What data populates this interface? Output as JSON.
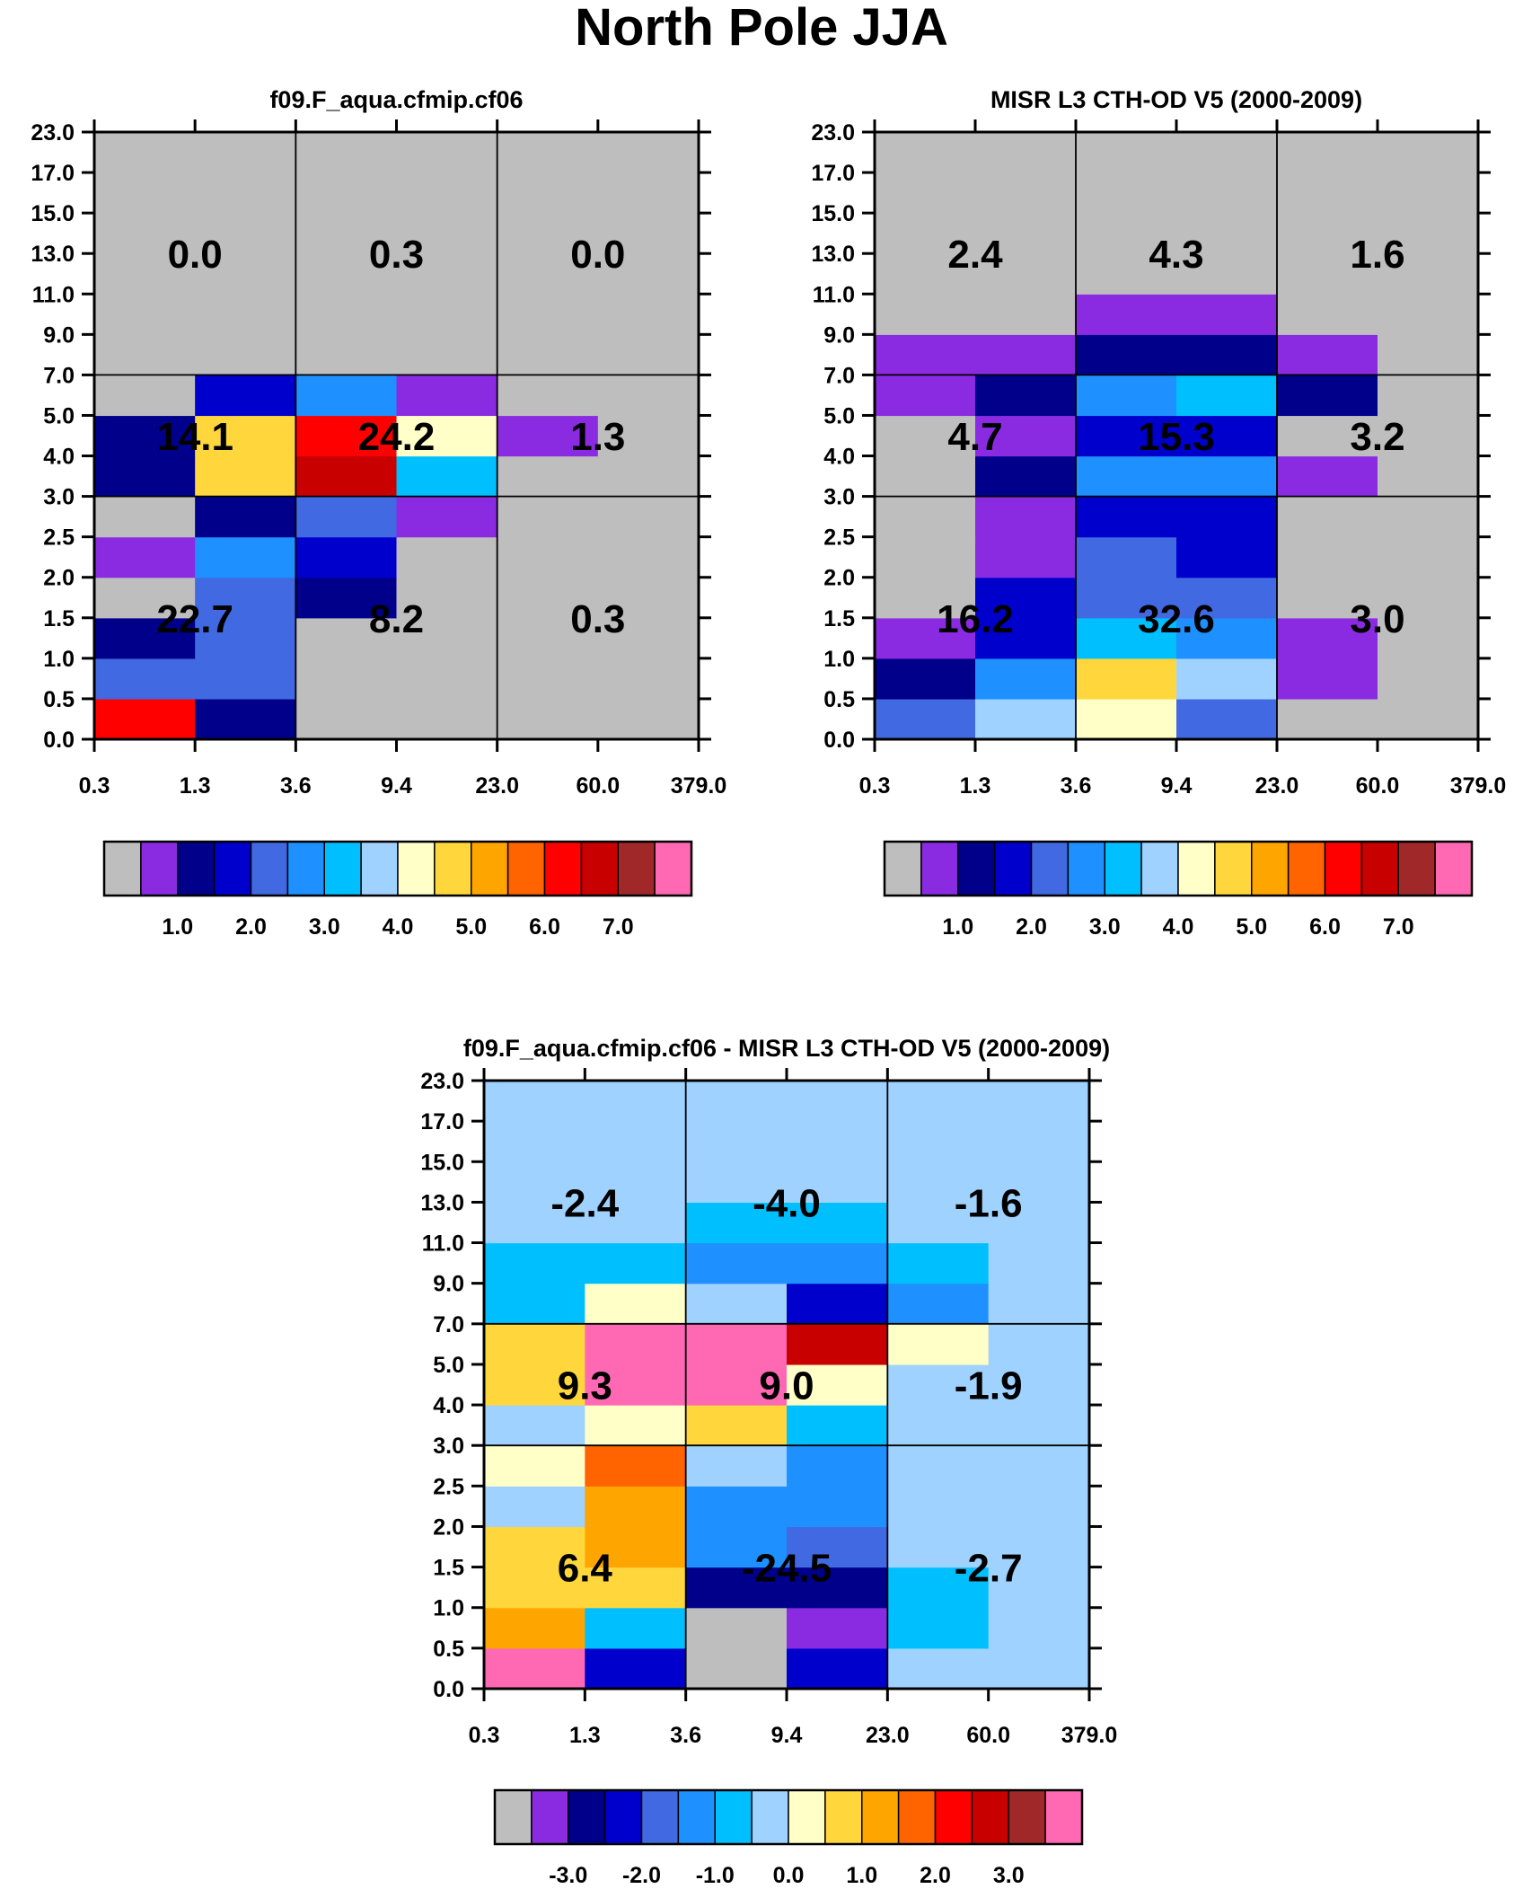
{
  "title": "North Pole JJA",
  "x_tick_labels": [
    "0.3",
    "1.3",
    "3.6",
    "9.4",
    "23.0",
    "60.0",
    "379.0"
  ],
  "y_tick_labels": [
    "0.0",
    "0.5",
    "1.0",
    "1.5",
    "2.0",
    "2.5",
    "3.0",
    "4.0",
    "5.0",
    "7.0",
    "9.0",
    "11.0",
    "13.0",
    "15.0",
    "17.0",
    "23.0"
  ],
  "colorbars": {
    "abs": {
      "colors": [
        "#bebebe",
        "#8a2be2",
        "#00008b",
        "#0000cd",
        "#4169e1",
        "#1e90ff",
        "#00bfff",
        "#a0d2ff",
        "#ffffc8",
        "#ffd73c",
        "#ffa500",
        "#ff6400",
        "#ff0000",
        "#c80000",
        "#a02828",
        "#ff69b4"
      ],
      "labels": [
        "1.0",
        "2.0",
        "3.0",
        "4.0",
        "5.0",
        "6.0",
        "7.0"
      ]
    },
    "diff": {
      "colors": [
        "#bebebe",
        "#8a2be2",
        "#00008b",
        "#0000cd",
        "#4169e1",
        "#1e90ff",
        "#00bfff",
        "#a0d2ff",
        "#ffffc8",
        "#ffd73c",
        "#ffa500",
        "#ff6400",
        "#ff0000",
        "#c80000",
        "#a02828",
        "#ff69b4"
      ],
      "labels": [
        "-3.0",
        "-2.0",
        "-1.0",
        "0.0",
        "1.0",
        "2.0",
        "3.0"
      ]
    }
  },
  "chart_data": [
    {
      "type": "heatmap",
      "title": "f09.F_aqua.cfmip.cf06",
      "x_tick_labels": [
        "0.3",
        "1.3",
        "3.6",
        "9.4",
        "23.0",
        "60.0",
        "379.0"
      ],
      "y_tick_labels": [
        "0.0",
        "0.5",
        "1.0",
        "1.5",
        "2.0",
        "2.5",
        "3.0",
        "4.0",
        "5.0",
        "7.0",
        "9.0",
        "11.0",
        "13.0",
        "15.0",
        "17.0",
        "23.0"
      ],
      "cell_color_index_rows_bottom_to_top": [
        [
          12,
          2,
          0,
          0,
          0,
          0
        ],
        [
          4,
          4,
          0,
          0,
          0,
          0
        ],
        [
          2,
          4,
          0,
          0,
          0,
          0
        ],
        [
          0,
          4,
          2,
          0,
          0,
          0
        ],
        [
          1,
          5,
          3,
          0,
          0,
          0
        ],
        [
          0,
          2,
          4,
          1,
          0,
          0
        ],
        [
          2,
          9,
          13,
          6,
          0,
          0
        ],
        [
          2,
          9,
          12,
          8,
          1,
          0
        ],
        [
          0,
          3,
          5,
          1,
          0,
          0
        ],
        [
          0,
          0,
          0,
          0,
          0,
          0
        ],
        [
          0,
          0,
          0,
          0,
          0,
          0
        ],
        [
          0,
          0,
          0,
          0,
          0,
          0
        ],
        [
          0,
          0,
          0,
          0,
          0,
          0
        ],
        [
          0,
          0,
          0,
          0,
          0,
          0
        ],
        [
          0,
          0,
          0,
          0,
          0,
          0
        ]
      ],
      "annotations": [
        {
          "label": "22.7",
          "col_block": 0,
          "row_block": 0
        },
        {
          "label": "8.2",
          "col_block": 1,
          "row_block": 0
        },
        {
          "label": "0.3",
          "col_block": 2,
          "row_block": 0
        },
        {
          "label": "14.1",
          "col_block": 0,
          "row_block": 1
        },
        {
          "label": "24.2",
          "col_block": 1,
          "row_block": 1
        },
        {
          "label": "1.3",
          "col_block": 2,
          "row_block": 1
        },
        {
          "label": "0.0",
          "col_block": 0,
          "row_block": 2
        },
        {
          "label": "0.3",
          "col_block": 1,
          "row_block": 2
        },
        {
          "label": "0.0",
          "col_block": 2,
          "row_block": 2
        }
      ]
    },
    {
      "type": "heatmap",
      "title": "MISR L3 CTH-OD V5 (2000-2009)",
      "x_tick_labels": [
        "0.3",
        "1.3",
        "3.6",
        "9.4",
        "23.0",
        "60.0",
        "379.0"
      ],
      "y_tick_labels": [
        "0.0",
        "0.5",
        "1.0",
        "1.5",
        "2.0",
        "2.5",
        "3.0",
        "4.0",
        "5.0",
        "7.0",
        "9.0",
        "11.0",
        "13.0",
        "15.0",
        "17.0",
        "23.0"
      ],
      "cell_color_index_rows_bottom_to_top": [
        [
          4,
          7,
          8,
          4,
          0,
          0
        ],
        [
          2,
          5,
          9,
          7,
          1,
          0
        ],
        [
          1,
          3,
          6,
          5,
          1,
          0
        ],
        [
          0,
          3,
          4,
          4,
          0,
          0
        ],
        [
          0,
          1,
          4,
          3,
          0,
          0
        ],
        [
          0,
          1,
          3,
          3,
          0,
          0
        ],
        [
          0,
          2,
          5,
          5,
          1,
          0
        ],
        [
          0,
          1,
          3,
          3,
          0,
          0
        ],
        [
          1,
          2,
          5,
          6,
          2,
          0
        ],
        [
          1,
          1,
          2,
          2,
          1,
          0
        ],
        [
          0,
          0,
          1,
          1,
          0,
          0
        ],
        [
          0,
          0,
          0,
          0,
          0,
          0
        ],
        [
          0,
          0,
          0,
          0,
          0,
          0
        ],
        [
          0,
          0,
          0,
          0,
          0,
          0
        ],
        [
          0,
          0,
          0,
          0,
          0,
          0
        ]
      ],
      "annotations": [
        {
          "label": "16.2",
          "col_block": 0,
          "row_block": 0
        },
        {
          "label": "32.6",
          "col_block": 1,
          "row_block": 0
        },
        {
          "label": "3.0",
          "col_block": 2,
          "row_block": 0
        },
        {
          "label": "4.7",
          "col_block": 0,
          "row_block": 1
        },
        {
          "label": "15.3",
          "col_block": 1,
          "row_block": 1
        },
        {
          "label": "3.2",
          "col_block": 2,
          "row_block": 1
        },
        {
          "label": "2.4",
          "col_block": 0,
          "row_block": 2
        },
        {
          "label": "4.3",
          "col_block": 1,
          "row_block": 2
        },
        {
          "label": "1.6",
          "col_block": 2,
          "row_block": 2
        }
      ]
    },
    {
      "type": "heatmap",
      "title": "f09.F_aqua.cfmip.cf06 - MISR L3 CTH-OD V5 (2000-2009)",
      "x_tick_labels": [
        "0.3",
        "1.3",
        "3.6",
        "9.4",
        "23.0",
        "60.0",
        "379.0"
      ],
      "y_tick_labels": [
        "0.0",
        "0.5",
        "1.0",
        "1.5",
        "2.0",
        "2.5",
        "3.0",
        "4.0",
        "5.0",
        "7.0",
        "9.0",
        "11.0",
        "13.0",
        "15.0",
        "17.0",
        "23.0"
      ],
      "cell_color_index_rows_bottom_to_top": [
        [
          15,
          3,
          0,
          3,
          7,
          7
        ],
        [
          10,
          6,
          0,
          1,
          6,
          7
        ],
        [
          9,
          9,
          2,
          2,
          6,
          7
        ],
        [
          9,
          10,
          5,
          4,
          7,
          7
        ],
        [
          7,
          10,
          5,
          5,
          7,
          7
        ],
        [
          8,
          11,
          7,
          5,
          7,
          7
        ],
        [
          7,
          8,
          9,
          6,
          7,
          7
        ],
        [
          9,
          15,
          15,
          8,
          7,
          7
        ],
        [
          9,
          15,
          15,
          13,
          8,
          7
        ],
        [
          6,
          8,
          7,
          3,
          5,
          7
        ],
        [
          6,
          6,
          5,
          5,
          6,
          7
        ],
        [
          7,
          7,
          6,
          6,
          7,
          7
        ],
        [
          7,
          7,
          7,
          7,
          7,
          7
        ],
        [
          7,
          7,
          7,
          7,
          7,
          7
        ],
        [
          7,
          7,
          7,
          7,
          7,
          7
        ]
      ],
      "annotations": [
        {
          "label": "6.4",
          "col_block": 0,
          "row_block": 0
        },
        {
          "label": "-24.5",
          "col_block": 1,
          "row_block": 0
        },
        {
          "label": "-2.7",
          "col_block": 2,
          "row_block": 0
        },
        {
          "label": "9.3",
          "col_block": 0,
          "row_block": 1
        },
        {
          "label": "9.0",
          "col_block": 1,
          "row_block": 1
        },
        {
          "label": "-1.9",
          "col_block": 2,
          "row_block": 1
        },
        {
          "label": "-2.4",
          "col_block": 0,
          "row_block": 2
        },
        {
          "label": "-4.0",
          "col_block": 1,
          "row_block": 2
        },
        {
          "label": "-1.6",
          "col_block": 2,
          "row_block": 2
        }
      ]
    }
  ]
}
